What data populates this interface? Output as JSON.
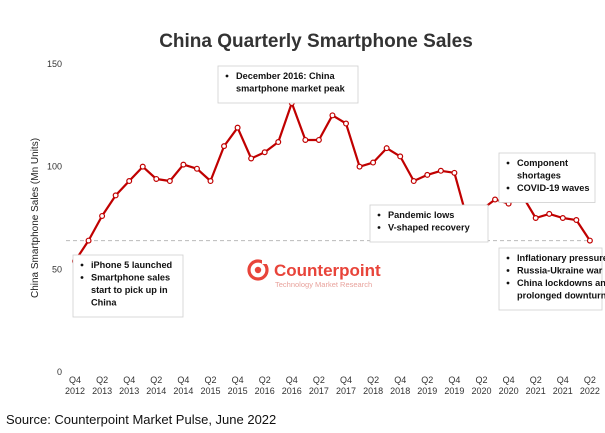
{
  "chart_data": {
    "type": "line",
    "title": "China Quarterly Smartphone Sales",
    "ylabel": "China Smartphone Sales (Mn Units)",
    "xlabel": "",
    "ylim": [
      0,
      150
    ],
    "yticks": [
      0,
      50,
      100,
      150
    ],
    "x_tick_labels": [
      [
        "Q4",
        "2012"
      ],
      [
        "Q2",
        "2013"
      ],
      [
        "Q4",
        "2013"
      ],
      [
        "Q2",
        "2014"
      ],
      [
        "Q4",
        "2014"
      ],
      [
        "Q2",
        "2015"
      ],
      [
        "Q4",
        "2015"
      ],
      [
        "Q2",
        "2016"
      ],
      [
        "Q4",
        "2016"
      ],
      [
        "Q2",
        "2017"
      ],
      [
        "Q4",
        "2017"
      ],
      [
        "Q2",
        "2018"
      ],
      [
        "Q4",
        "2018"
      ],
      [
        "Q2",
        "2019"
      ],
      [
        "Q4",
        "2019"
      ],
      [
        "Q2",
        "2020"
      ],
      [
        "Q4",
        "2020"
      ],
      [
        "Q2",
        "2021"
      ],
      [
        "Q4",
        "2021"
      ],
      [
        "Q2",
        "2022"
      ]
    ],
    "x": [
      "Q4 2012",
      "Q1 2013",
      "Q2 2013",
      "Q3 2013",
      "Q4 2013",
      "Q1 2014",
      "Q2 2014",
      "Q3 2014",
      "Q4 2014",
      "Q1 2015",
      "Q2 2015",
      "Q3 2015",
      "Q4 2015",
      "Q1 2016",
      "Q2 2016",
      "Q3 2016",
      "Q4 2016",
      "Q1 2017",
      "Q2 2017",
      "Q3 2017",
      "Q4 2017",
      "Q1 2018",
      "Q2 2018",
      "Q3 2018",
      "Q4 2018",
      "Q1 2019",
      "Q2 2019",
      "Q3 2019",
      "Q4 2019",
      "Q1 2020",
      "Q2 2020",
      "Q3 2020",
      "Q4 2020",
      "Q1 2021",
      "Q2 2021",
      "Q3 2021",
      "Q4 2021",
      "Q1 2022",
      "Q2 2022"
    ],
    "series": [
      {
        "name": "",
        "values": [
          54,
          64,
          76,
          86,
          93,
          100,
          94,
          93,
          101,
          99,
          93,
          110,
          119,
          104,
          107,
          112,
          131,
          113,
          113,
          125,
          121,
          100,
          102,
          109,
          105,
          93,
          96,
          98,
          97,
          73,
          79,
          84,
          82,
          86,
          75,
          77,
          75,
          74,
          64
        ],
        "color": "#c00000"
      }
    ],
    "reference_line": {
      "value": 64,
      "style": "dashed",
      "color": "#bbbbbb"
    },
    "annotations": [
      {
        "at": "Q4 2016",
        "lines": [
          [
            "December 2016: China",
            "smartphone market peak"
          ]
        ]
      },
      {
        "at": "Q4 2012",
        "lines": [
          [
            "iPhone 5 launched"
          ],
          [
            "Smartphone sales",
            "start to pick up in",
            "China"
          ]
        ]
      },
      {
        "at": "Q4 2019",
        "lines": [
          [
            "Pandemic lows"
          ],
          [
            "V-shaped recovery"
          ]
        ]
      },
      {
        "at": "Q1 2021",
        "lines": [
          [
            "Component",
            "shortages"
          ],
          [
            "COVID-19 waves"
          ]
        ]
      },
      {
        "at": "Q2 2022",
        "lines": [
          [
            "Inflationary pressure"
          ],
          [
            "Russia-Ukraine war"
          ],
          [
            "China lockdowns and",
            "prolonged downturn"
          ]
        ]
      }
    ],
    "grid": false,
    "legend": "none"
  },
  "watermark": {
    "brand": "Counterpoint",
    "tagline": "Technology Market Research",
    "color": "#e8443a"
  },
  "source": "Source: Counterpoint Market Pulse, June 2022"
}
